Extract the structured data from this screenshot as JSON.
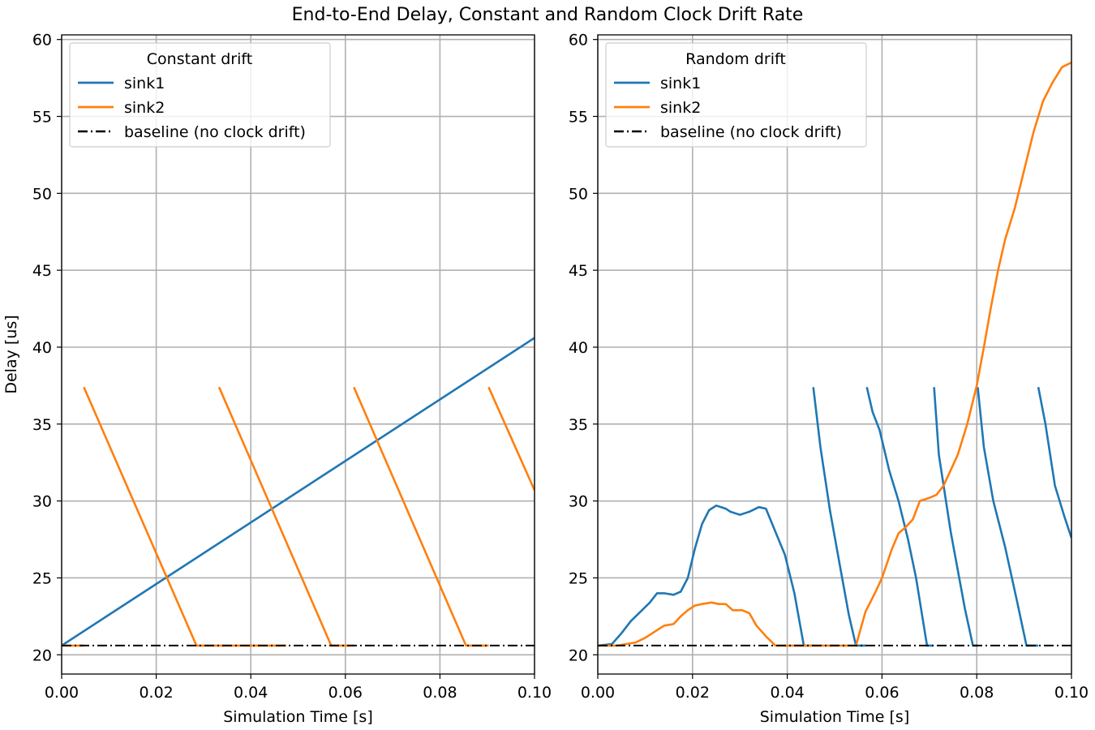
{
  "figure": {
    "suptitle": "End-to-End Delay, Constant and Random Clock Drift Rate"
  },
  "colors": {
    "sink1": "#1f77b4",
    "sink2": "#ff7f0e",
    "baseline": "#000000",
    "grid": "#b0b0b0"
  },
  "chart_data": [
    {
      "type": "line",
      "title": "",
      "legend_title": "Constant drift",
      "legend_position": "upper-left",
      "xlabel": "Simulation Time [s]",
      "ylabel": "Delay [us]",
      "xlim": [
        0.0,
        0.1
      ],
      "ylim": [
        18.75,
        60.3
      ],
      "xticks": [
        0.0,
        0.02,
        0.04,
        0.06,
        0.08,
        0.1
      ],
      "xtick_labels": [
        "0.00",
        "0.02",
        "0.04",
        "0.06",
        "0.08",
        "0.10"
      ],
      "yticks": [
        20,
        25,
        30,
        35,
        40,
        45,
        50,
        55,
        60
      ],
      "ytick_labels": [
        "20",
        "25",
        "30",
        "35",
        "40",
        "45",
        "50",
        "55",
        "60"
      ],
      "grid": true,
      "series": [
        {
          "name": "sink1",
          "color": "#1f77b4",
          "x": [
            0.0,
            0.1
          ],
          "y": [
            20.6,
            40.6
          ]
        },
        {
          "name": "sink2",
          "color": "#ff7f0e",
          "segments": [
            {
              "x": [
                0.0,
                0.0047
              ],
              "y": [
                20.6,
                20.6
              ]
            },
            {
              "x": [
                0.0047,
                0.0285,
                0.0475
              ],
              "y": [
                37.4,
                20.6,
                20.6
              ]
            },
            {
              "x": [
                0.0333,
                0.057,
                0.0618
              ],
              "y": [
                37.4,
                20.6,
                20.6
              ]
            },
            {
              "x": [
                0.0618,
                0.0855,
                0.0903
              ],
              "y": [
                37.4,
                20.6,
                20.6
              ]
            },
            {
              "x": [
                0.0903,
                0.1
              ],
              "y": [
                37.4,
                30.7
              ]
            }
          ]
        },
        {
          "name": "baseline (no clock drift)",
          "color": "#000000",
          "style": "dashdot",
          "x": [
            0.0,
            0.1
          ],
          "y": [
            20.6,
            20.6
          ]
        }
      ]
    },
    {
      "type": "line",
      "title": "",
      "legend_title": "Random drift",
      "legend_position": "upper-left",
      "xlabel": "Simulation Time [s]",
      "ylabel": "",
      "xlim": [
        0.0,
        0.1
      ],
      "ylim": [
        18.75,
        60.3
      ],
      "xticks": [
        0.0,
        0.02,
        0.04,
        0.06,
        0.08,
        0.1
      ],
      "xtick_labels": [
        "0.00",
        "0.02",
        "0.04",
        "0.06",
        "0.08",
        "0.10"
      ],
      "yticks": [
        20,
        25,
        30,
        35,
        40,
        45,
        50,
        55,
        60
      ],
      "ytick_labels": [
        "20",
        "25",
        "30",
        "35",
        "40",
        "45",
        "50",
        "55",
        "60"
      ],
      "grid": true,
      "series": [
        {
          "name": "sink1",
          "color": "#1f77b4",
          "segments": [
            {
              "x": [
                0.0,
                0.003,
                0.005,
                0.007,
                0.009,
                0.011,
                0.0125,
                0.014,
                0.016,
                0.0175,
                0.019,
                0.0205,
                0.022,
                0.0235,
                0.025,
                0.027,
                0.028,
                0.03,
                0.032,
                0.034,
                0.0355,
                0.0375,
                0.0395,
                0.0415,
                0.0435
              ],
              "y": [
                20.6,
                20.7,
                21.4,
                22.2,
                22.8,
                23.4,
                24.0,
                24.0,
                23.9,
                24.1,
                25.0,
                26.9,
                28.5,
                29.4,
                29.7,
                29.5,
                29.3,
                29.1,
                29.3,
                29.6,
                29.5,
                28.0,
                26.5,
                24.0,
                20.6
              ]
            },
            {
              "x": [
                0.0435,
                0.0455
              ],
              "y": [
                20.6,
                20.6
              ]
            },
            {
              "x": [
                0.0455,
                0.047,
                0.049,
                0.051,
                0.053,
                0.0545,
                0.0565
              ],
              "y": [
                37.4,
                33.5,
                29.4,
                26.0,
                22.6,
                20.6,
                20.6
              ]
            },
            {
              "x": [
                0.0568,
                0.058,
                0.0595,
                0.0615,
                0.0635,
                0.0655,
                0.0672,
                0.0695,
                0.0708
              ],
              "y": [
                37.4,
                35.8,
                34.6,
                32.0,
                30.0,
                27.5,
                25.0,
                20.6,
                20.6
              ]
            },
            {
              "x": [
                0.071,
                0.072,
                0.0745,
                0.0775,
                0.0792,
                0.0802
              ],
              "y": [
                37.4,
                33.0,
                28.0,
                23.0,
                20.6,
                20.6
              ]
            },
            {
              "x": [
                0.0802,
                0.0815,
                0.0835,
                0.086,
                0.0885,
                0.0905,
                0.093
              ],
              "y": [
                37.4,
                33.5,
                30.0,
                27.0,
                23.5,
                20.6,
                20.6
              ]
            },
            {
              "x": [
                0.093,
                0.0945,
                0.0965,
                0.0985,
                0.1
              ],
              "y": [
                37.4,
                35.0,
                31.0,
                29.0,
                27.6
              ]
            }
          ]
        },
        {
          "name": "sink2",
          "color": "#ff7f0e",
          "segments": [
            {
              "x": [
                0.0,
                0.004,
                0.008,
                0.01,
                0.012,
                0.014,
                0.016,
                0.0175,
                0.019,
                0.0205,
                0.022,
                0.024,
                0.0255,
                0.027,
                0.0285,
                0.0305,
                0.032,
                0.0335,
                0.0355,
                0.0375,
                0.04,
                0.045,
                0.05,
                0.0545
              ],
              "y": [
                20.6,
                20.6,
                20.8,
                21.1,
                21.5,
                21.9,
                22.0,
                22.5,
                22.9,
                23.2,
                23.3,
                23.4,
                23.3,
                23.3,
                22.9,
                22.9,
                22.7,
                21.9,
                21.2,
                20.6,
                20.6,
                20.6,
                20.6,
                20.6
              ]
            },
            {
              "x": [
                0.0545,
                0.0565,
                0.0585,
                0.06,
                0.062,
                0.0635,
                0.065,
                0.0665,
                0.068,
                0.07,
                0.0715,
                0.073,
                0.0745,
                0.076,
                0.078,
                0.08,
                0.0815,
                0.083,
                0.0845,
                0.086,
                0.088,
                0.09,
                0.092,
                0.094,
                0.096,
                0.098,
                0.1
              ],
              "y": [
                20.6,
                22.8,
                24.0,
                25.0,
                26.8,
                27.9,
                28.3,
                28.8,
                30.0,
                30.2,
                30.4,
                31.0,
                32.0,
                33.0,
                35.0,
                37.5,
                40.0,
                42.6,
                45.0,
                47.0,
                49.0,
                51.5,
                54.0,
                56.0,
                57.2,
                58.2,
                58.5
              ]
            }
          ]
        },
        {
          "name": "baseline (no clock drift)",
          "color": "#000000",
          "style": "dashdot",
          "x": [
            0.0,
            0.1
          ],
          "y": [
            20.6,
            20.6
          ]
        }
      ]
    }
  ]
}
